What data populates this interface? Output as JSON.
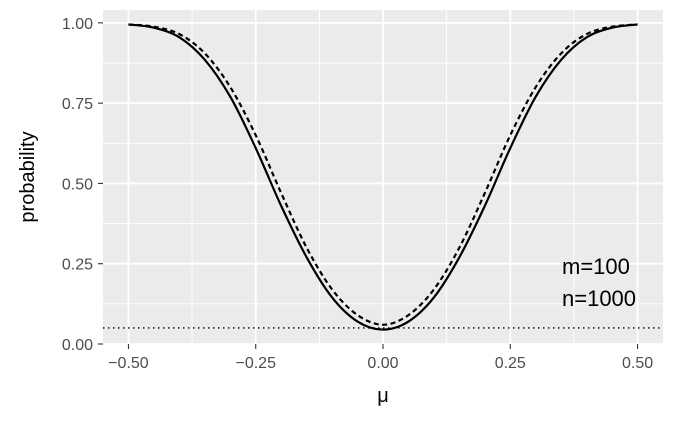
{
  "chart_data": {
    "type": "line",
    "xlabel": "μ",
    "ylabel": "probability",
    "xlim": [
      -0.55,
      0.55
    ],
    "ylim": [
      0,
      1.04
    ],
    "x_ticks": [
      -0.5,
      -0.25,
      0.0,
      0.25,
      0.5
    ],
    "x_tick_labels": [
      "−0.50",
      "−0.25",
      "0.00",
      "0.25",
      "0.50"
    ],
    "y_ticks": [
      0.0,
      0.25,
      0.5,
      0.75,
      1.0
    ],
    "y_tick_labels": [
      "0.00",
      "0.25",
      "0.50",
      "0.75",
      "1.00"
    ],
    "grid": true,
    "background": "#ebebeb",
    "annotations": [
      "m=100",
      "n=1000"
    ],
    "reference_line": {
      "y": 0.05,
      "style": "dotted"
    },
    "series": [
      {
        "style": "solid",
        "color": "#000000",
        "x": [
          -0.5,
          -0.45,
          -0.4,
          -0.35,
          -0.3,
          -0.25,
          -0.2,
          -0.15,
          -0.1,
          -0.05,
          0.0,
          0.05,
          0.1,
          0.15,
          0.2,
          0.25,
          0.3,
          0.35,
          0.4,
          0.45,
          0.5
        ],
        "y": [
          0.995,
          0.985,
          0.955,
          0.885,
          0.77,
          0.61,
          0.43,
          0.27,
          0.145,
          0.07,
          0.045,
          0.07,
          0.145,
          0.27,
          0.43,
          0.61,
          0.77,
          0.885,
          0.955,
          0.985,
          0.995
        ]
      },
      {
        "style": "dashed",
        "color": "#000000",
        "x": [
          -0.5,
          -0.45,
          -0.4,
          -0.35,
          -0.3,
          -0.25,
          -0.2,
          -0.15,
          -0.1,
          -0.05,
          0.0,
          0.05,
          0.1,
          0.15,
          0.2,
          0.25,
          0.3,
          0.35,
          0.4,
          0.45,
          0.5
        ],
        "y": [
          0.995,
          0.988,
          0.965,
          0.905,
          0.8,
          0.65,
          0.47,
          0.3,
          0.17,
          0.09,
          0.06,
          0.09,
          0.17,
          0.3,
          0.47,
          0.65,
          0.8,
          0.905,
          0.965,
          0.988,
          0.995
        ]
      }
    ]
  }
}
